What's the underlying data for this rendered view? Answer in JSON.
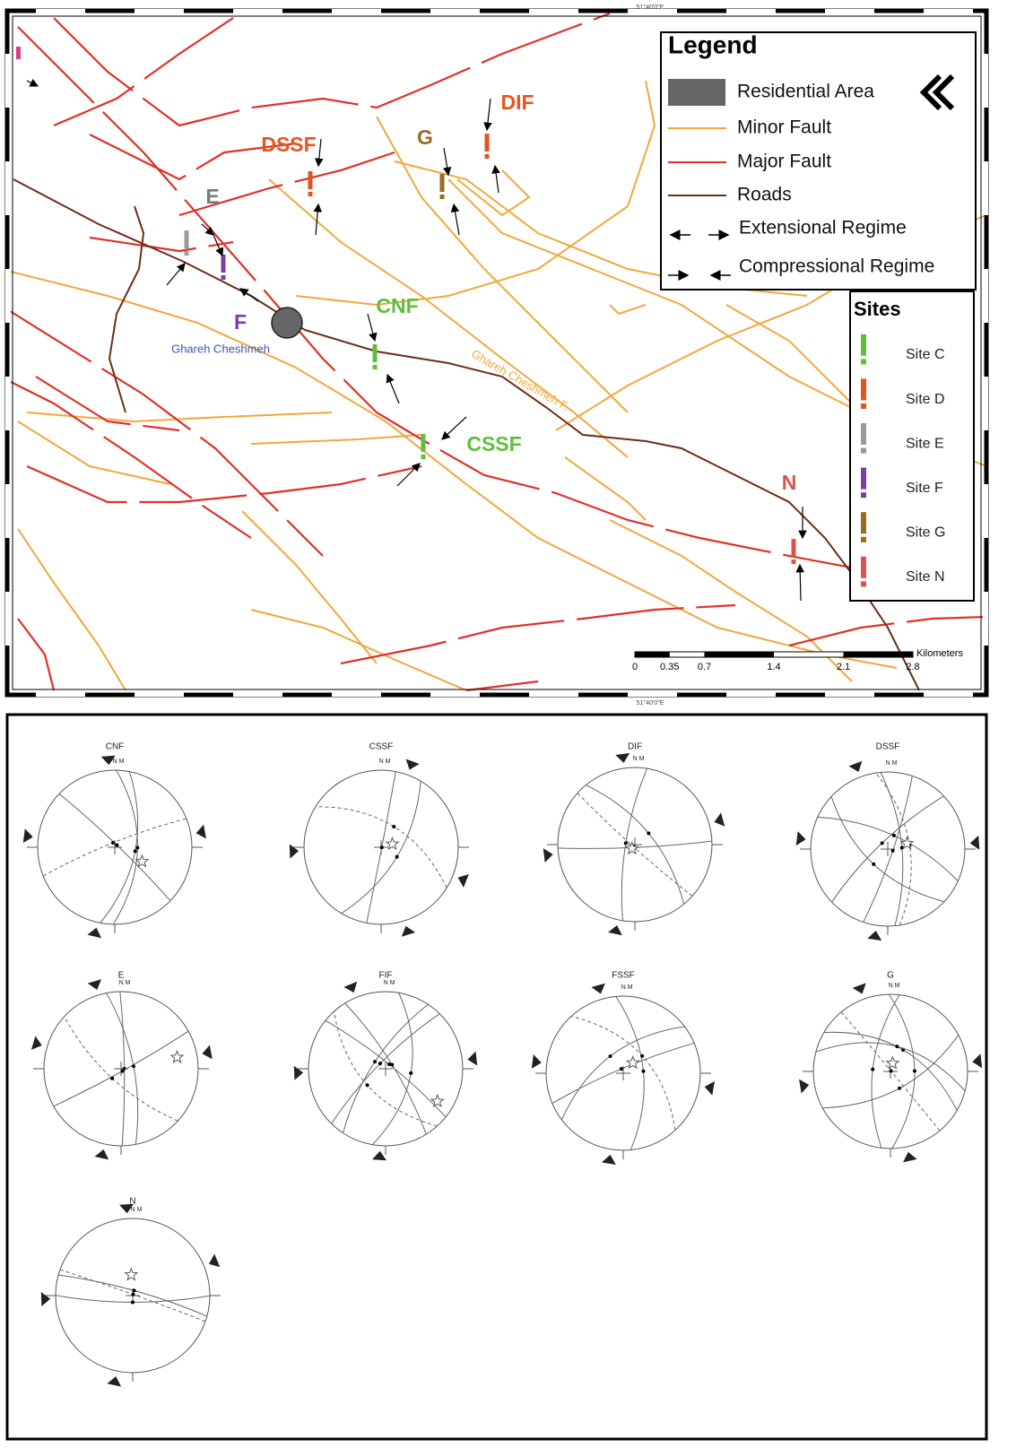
{
  "map": {
    "coordinate_top": "51°40'0\"E",
    "coordinate_bottom": "51°40'0\"E",
    "legend": {
      "title": "Legend",
      "items": [
        "Residential Area",
        "Minor Fault",
        "Major Fault",
        "Roads",
        "Extensional Regime",
        "Compressional Regime"
      ]
    },
    "sites": {
      "title": "Sites",
      "items": [
        {
          "label": "Site C",
          "color": "#5fbf3b"
        },
        {
          "label": "Site D",
          "color": "#e2541f"
        },
        {
          "label": "Site E",
          "color": "#9a9a9a"
        },
        {
          "label": "Site F",
          "color": "#7b3fa0"
        },
        {
          "label": "Site G",
          "color": "#9a6b1e"
        },
        {
          "label": "Site N",
          "color": "#d9534f"
        }
      ]
    },
    "labels": [
      {
        "text": "DIF",
        "color": "#e8541e"
      },
      {
        "text": "DSSF",
        "color": "#e8541e"
      },
      {
        "text": "G",
        "color": "#9a6b28"
      },
      {
        "text": "E",
        "color": "#7a7a7a"
      },
      {
        "text": "F",
        "color": "#7b3fa0"
      },
      {
        "text": "CNF",
        "color": "#5fbf3b"
      },
      {
        "text": "CSSF",
        "color": "#5fbf3b"
      },
      {
        "text": "N",
        "color": "#d9534f"
      }
    ],
    "place_name": "Ghareh Cheshmeh",
    "fault_name": "Ghareh Cheshmeh F.",
    "scale": {
      "unit": "Kilometers",
      "ticks": [
        0,
        0.35,
        0.7,
        1.4,
        2.1,
        2.8
      ]
    }
  },
  "stereonets": {
    "north_label": "N M",
    "plots": [
      "CNF",
      "CSSF",
      "DIF",
      "DSSF",
      "E",
      "FIF",
      "FSSF",
      "G",
      "N"
    ]
  }
}
